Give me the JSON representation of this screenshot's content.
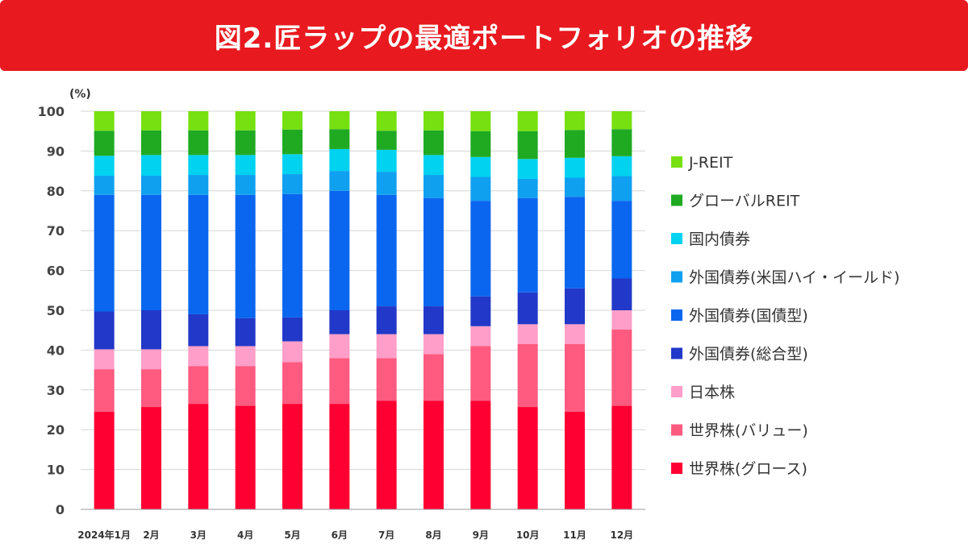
{
  "title": "図2.匠ラップの最適ポートフォリオの推移",
  "chart_data": {
    "type": "bar",
    "stacked": true,
    "title": "図2.匠ラップの最適ポートフォリオの推移",
    "ylabel": "(%)",
    "xlabel": "",
    "ylim": [
      0,
      100
    ],
    "yticks": [
      0,
      10,
      20,
      30,
      40,
      50,
      60,
      70,
      80,
      90,
      100
    ],
    "grid": true,
    "legend_position": "right",
    "categories": [
      "2024年1月",
      "2月",
      "3月",
      "4月",
      "5月",
      "6月",
      "7月",
      "8月",
      "9月",
      "10月",
      "11月",
      "12月"
    ],
    "series": [
      {
        "name": "世界株(グロース)",
        "color": "#ff0033",
        "values": [
          24.5,
          25.7,
          26.5,
          26,
          26.5,
          26.5,
          27.3,
          27.3,
          27.3,
          25.7,
          24.5,
          26
        ]
      },
      {
        "name": "世界株(バリュー)",
        "color": "#ff5a80",
        "values": [
          10.7,
          9.5,
          9.5,
          10,
          10.5,
          11.5,
          10.7,
          11.7,
          13.7,
          15.8,
          17,
          19.2
        ]
      },
      {
        "name": "日本株",
        "color": "#ff9ec8",
        "values": [
          5,
          5,
          5,
          5,
          5.2,
          6,
          6,
          5,
          5,
          5,
          5,
          4.8
        ]
      },
      {
        "name": "外国債券(総合型)",
        "color": "#2238c8",
        "values": [
          9.5,
          9.8,
          8,
          7,
          6,
          6,
          7,
          7,
          7.5,
          8,
          9,
          8
        ]
      },
      {
        "name": "外国債券(国債型)",
        "color": "#0a66ee",
        "values": [
          29.3,
          29,
          30,
          31,
          31,
          30,
          28,
          27.2,
          24,
          23.7,
          23,
          19.5
        ]
      },
      {
        "name": "外国債券(米国ハイ・イールド)",
        "color": "#10a0f0",
        "values": [
          4.8,
          4.8,
          5,
          5,
          5,
          5,
          5.8,
          5.8,
          6,
          4.8,
          4.8,
          6.2
        ]
      },
      {
        "name": "国内債券",
        "color": "#00d2f0",
        "values": [
          5,
          5.2,
          5,
          5,
          5,
          5.5,
          5.5,
          5,
          5,
          5,
          5,
          5
        ]
      },
      {
        "name": "グローバルREIT",
        "color": "#1faa22",
        "values": [
          6.3,
          6.2,
          6.2,
          6.2,
          6.2,
          5,
          4.8,
          6.2,
          6.5,
          7,
          7,
          6.8
        ]
      },
      {
        "name": "J-REIT",
        "color": "#77e010",
        "values": [
          4.9,
          4.8,
          4.8,
          4.8,
          4.6,
          4.5,
          4.9,
          4.8,
          5,
          5,
          4.7,
          4.5
        ]
      }
    ]
  }
}
